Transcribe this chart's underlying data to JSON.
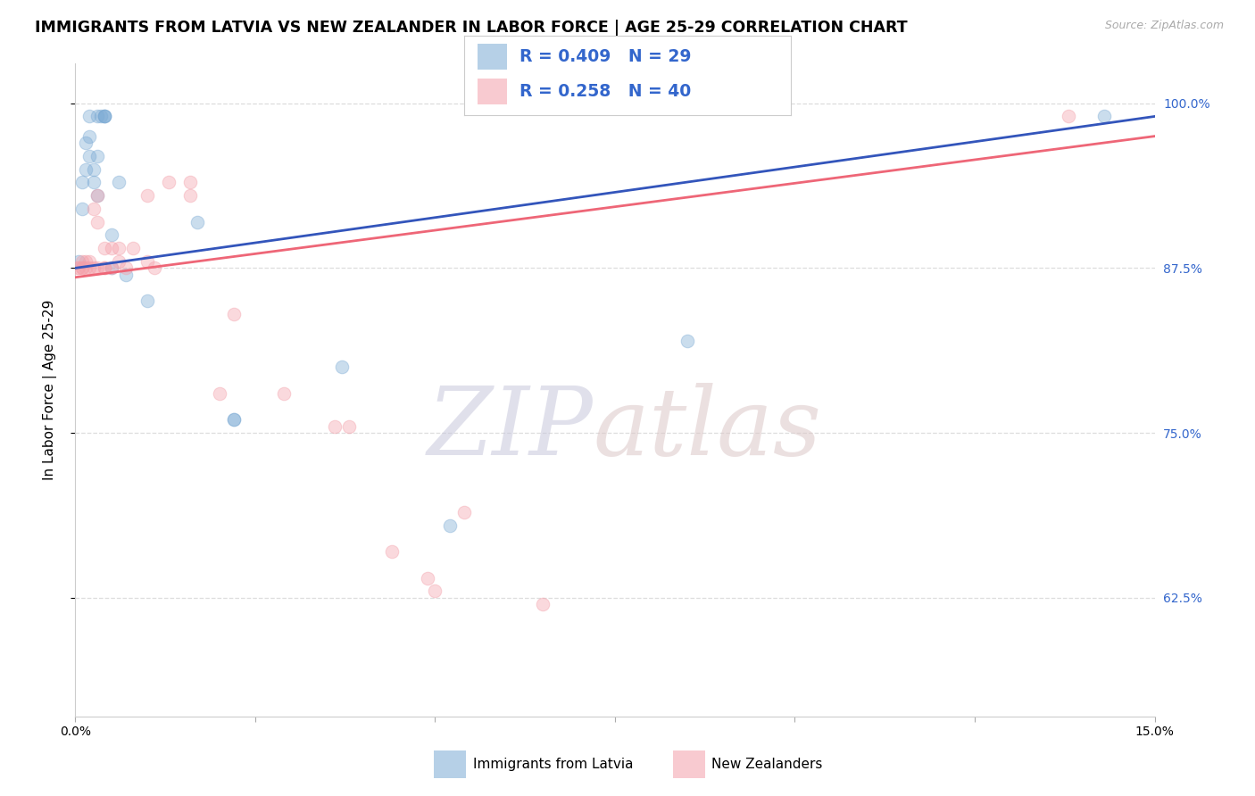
{
  "title": "IMMIGRANTS FROM LATVIA VS NEW ZEALANDER IN LABOR FORCE | AGE 25-29 CORRELATION CHART",
  "source": "Source: ZipAtlas.com",
  "ylabel": "In Labor Force | Age 25-29",
  "blue_label": "Immigrants from Latvia",
  "pink_label": "New Zealanders",
  "blue_R": 0.409,
  "blue_N": 29,
  "pink_R": 0.258,
  "pink_N": 40,
  "blue_color": "#7BAAD4",
  "pink_color": "#F4A0AA",
  "blue_line_color": "#3355BB",
  "pink_line_color": "#EE6677",
  "xmin": 0.0,
  "xmax": 0.15,
  "ymin": 0.535,
  "ymax": 1.03,
  "yticks": [
    0.625,
    0.75,
    0.875,
    1.0
  ],
  "ytick_labels": [
    "62.5%",
    "75.0%",
    "87.5%",
    "100.0%"
  ],
  "blue_x": [
    0.0005,
    0.001,
    0.001,
    0.0015,
    0.0015,
    0.002,
    0.002,
    0.002,
    0.0025,
    0.0025,
    0.003,
    0.003,
    0.003,
    0.0035,
    0.004,
    0.004,
    0.004,
    0.005,
    0.005,
    0.006,
    0.007,
    0.01,
    0.017,
    0.022,
    0.022,
    0.037,
    0.052,
    0.085,
    0.143
  ],
  "blue_y": [
    0.88,
    0.92,
    0.94,
    0.95,
    0.97,
    0.96,
    0.975,
    0.99,
    0.94,
    0.95,
    0.93,
    0.96,
    0.99,
    0.99,
    0.99,
    0.99,
    0.99,
    0.875,
    0.9,
    0.94,
    0.87,
    0.85,
    0.91,
    0.76,
    0.76,
    0.8,
    0.68,
    0.82,
    0.99
  ],
  "pink_x": [
    0.0003,
    0.0005,
    0.001,
    0.001,
    0.001,
    0.0015,
    0.0015,
    0.002,
    0.002,
    0.0025,
    0.0025,
    0.003,
    0.003,
    0.003,
    0.004,
    0.004,
    0.004,
    0.005,
    0.005,
    0.006,
    0.006,
    0.007,
    0.008,
    0.01,
    0.01,
    0.011,
    0.013,
    0.016,
    0.016,
    0.02,
    0.022,
    0.029,
    0.036,
    0.038,
    0.044,
    0.049,
    0.05,
    0.054,
    0.065,
    0.138
  ],
  "pink_y": [
    0.875,
    0.875,
    0.875,
    0.875,
    0.88,
    0.875,
    0.88,
    0.875,
    0.88,
    0.875,
    0.92,
    0.875,
    0.91,
    0.93,
    0.875,
    0.875,
    0.89,
    0.875,
    0.89,
    0.88,
    0.89,
    0.875,
    0.89,
    0.88,
    0.93,
    0.875,
    0.94,
    0.93,
    0.94,
    0.78,
    0.84,
    0.78,
    0.755,
    0.755,
    0.66,
    0.64,
    0.63,
    0.69,
    0.62,
    0.99
  ],
  "blue_trendline_x": [
    0.0,
    0.15
  ],
  "blue_trendline_y": [
    0.875,
    0.99
  ],
  "pink_trendline_x": [
    0.0,
    0.15
  ],
  "pink_trendline_y": [
    0.868,
    0.975
  ],
  "background_color": "#FFFFFF",
  "grid_color": "#DDDDDD",
  "title_fontsize": 12.5,
  "axis_label_fontsize": 11,
  "tick_fontsize": 10,
  "marker_size": 110,
  "marker_alpha": 0.4,
  "line_width": 2.0
}
